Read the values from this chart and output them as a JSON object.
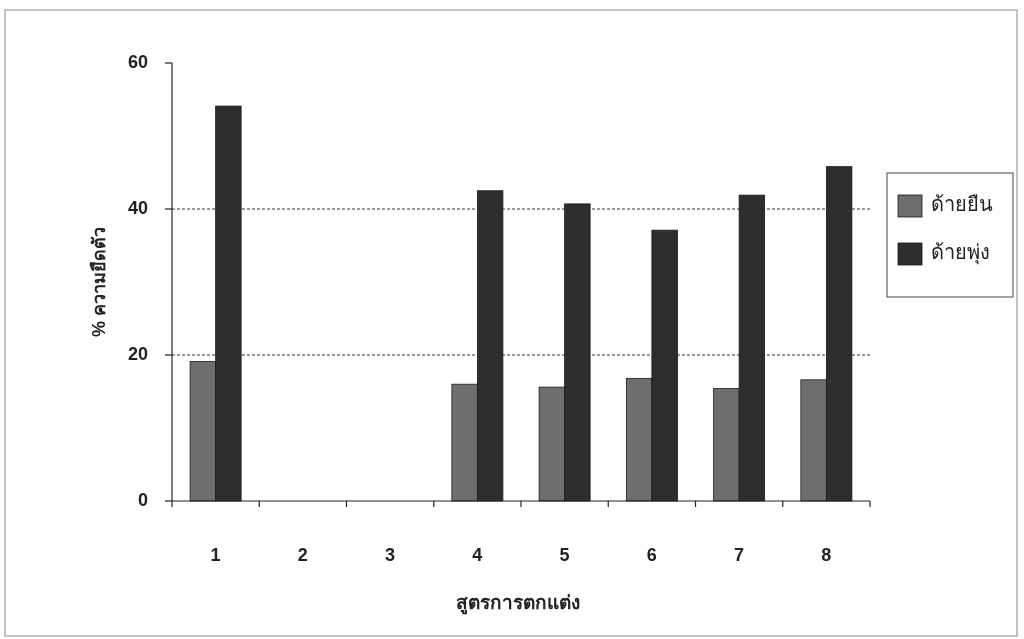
{
  "chart_data": {
    "type": "bar",
    "xlabel": "สูตรการตกแต่ง",
    "ylabel": "% ความยืดตัว",
    "categories": [
      "1",
      "2",
      "3",
      "4",
      "5",
      "6",
      "7",
      "8"
    ],
    "series": [
      {
        "name": "ด้ายยืน",
        "color": "#6e6e6e",
        "values": [
          19.1,
          null,
          null,
          16.0,
          15.6,
          16.8,
          15.4,
          16.6
        ]
      },
      {
        "name": "ด้ายพุ่ง",
        "color": "#2e2e2e",
        "values": [
          54.1,
          null,
          null,
          42.5,
          40.7,
          37.1,
          41.9,
          45.8
        ]
      }
    ],
    "ylim": [
      0,
      60
    ],
    "yticks": [
      0,
      20,
      40,
      60
    ],
    "grid": "y",
    "legend": "right"
  }
}
